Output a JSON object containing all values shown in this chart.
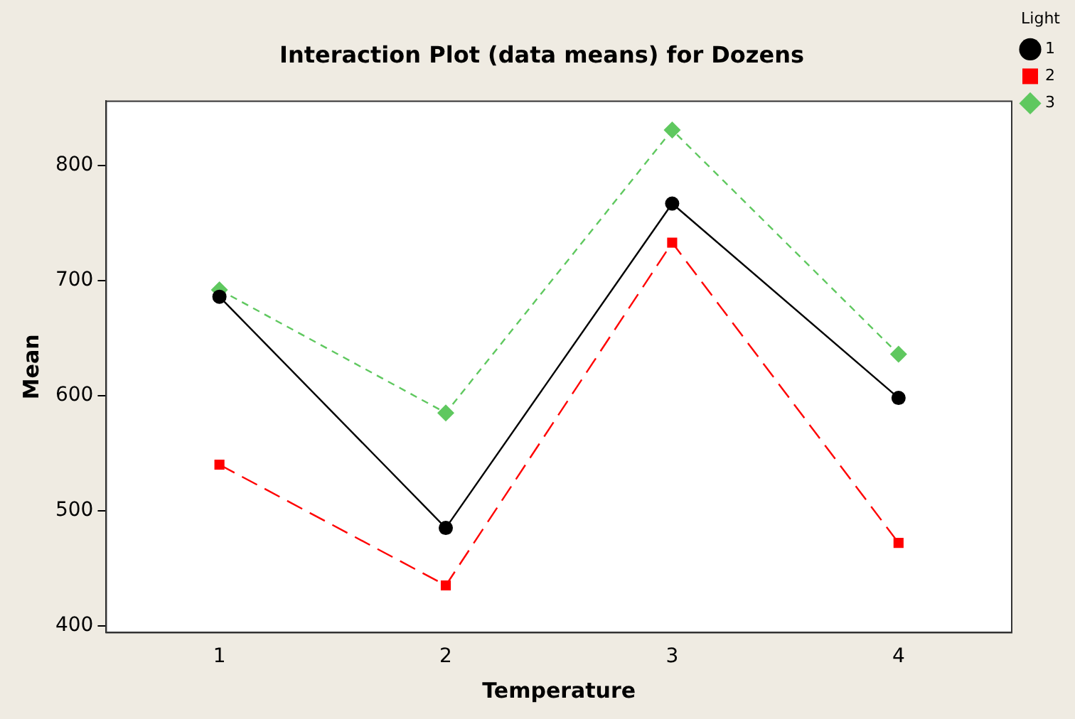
{
  "chart_data": {
    "type": "line",
    "title": "Interaction Plot (data means) for Dozens",
    "xlabel": "Temperature",
    "ylabel": "Mean",
    "legend_title": "Light",
    "x": [
      1,
      2,
      3,
      4
    ],
    "xlim": [
      0.5,
      4.5
    ],
    "xticks": [
      1,
      2,
      3,
      4
    ],
    "ylim": [
      394,
      856
    ],
    "yticks": [
      400,
      500,
      600,
      700,
      800
    ],
    "grid": false,
    "legend": "top right",
    "series": [
      {
        "name": "1",
        "color": "#000000",
        "marker": "circle",
        "line_style": "solid",
        "values": [
          686,
          485,
          767,
          598
        ]
      },
      {
        "name": "2",
        "color": "#ff0000",
        "marker": "square",
        "line_style": "dashed",
        "values": [
          540,
          435,
          733,
          472
        ]
      },
      {
        "name": "3",
        "color": "#5fc85f",
        "marker": "diamond",
        "line_style": "dotted",
        "values": [
          692,
          585,
          831,
          636
        ]
      }
    ]
  }
}
